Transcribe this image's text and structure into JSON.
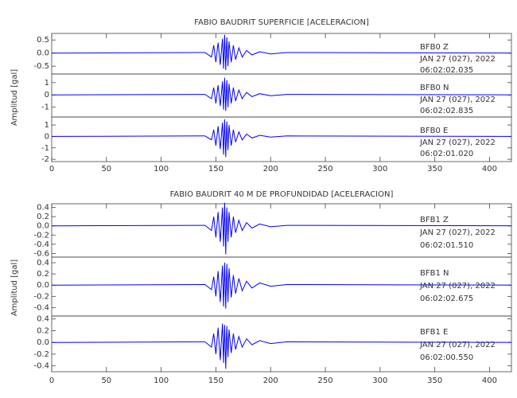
{
  "chart_data": [
    {
      "type": "line",
      "title": "FABIO BAUDRIT SUPERFICIE [ACELERACION]",
      "y_label": "Amplitud [gal]",
      "xlim": [
        0,
        420
      ],
      "xticks": [
        0,
        50,
        100,
        150,
        200,
        250,
        300,
        350,
        400
      ],
      "panels": [
        {
          "station": "BFB0   Z",
          "date": "JAN 27 (027), 2022",
          "time": "06:02:02.035",
          "color": "#0000ff",
          "ylim": [
            -0.8,
            0.75
          ],
          "yticks": [
            0.5,
            {
              "value": 0,
              "label": "0.0"
            },
            -0.5
          ],
          "x": [
            0,
            140,
            146,
            148,
            150,
            152,
            154,
            156,
            157,
            158,
            159,
            160,
            161,
            162,
            164,
            166,
            168,
            171,
            174,
            178,
            183,
            190,
            200,
            215,
            420
          ],
          "values": [
            0,
            0.02,
            -0.15,
            0.3,
            -0.35,
            0.4,
            -0.45,
            0.55,
            -0.6,
            0.7,
            -0.65,
            0.6,
            -0.5,
            0.45,
            -0.35,
            0.3,
            -0.25,
            0.2,
            -0.15,
            0.1,
            -0.07,
            0.05,
            -0.03,
            0.02,
            0
          ]
        },
        {
          "station": "BFB0   N",
          "date": "JAN 27 (027), 2022",
          "time": "06:02:02.835",
          "color": "#0000ff",
          "ylim": [
            -1.8,
            1.7
          ],
          "yticks": [
            1,
            0,
            -1
          ],
          "x": [
            0,
            140,
            146,
            148,
            150,
            152,
            154,
            156,
            157,
            158,
            159,
            160,
            161,
            162,
            164,
            166,
            168,
            171,
            174,
            178,
            183,
            190,
            200,
            215,
            420
          ],
          "values": [
            0,
            0.04,
            -0.3,
            0.6,
            -0.7,
            0.8,
            -0.9,
            1.1,
            -1.2,
            1.4,
            -1.3,
            1.2,
            -1.0,
            0.9,
            -0.7,
            0.6,
            -0.5,
            0.4,
            -0.3,
            0.2,
            -0.14,
            0.1,
            -0.06,
            0.04,
            0
          ]
        },
        {
          "station": "BFB0   E",
          "date": "JAN 27 (027), 2022",
          "time": "06:02:01.020",
          "color": "#0000ff",
          "ylim": [
            -2.2,
            1.7
          ],
          "yticks": [
            1,
            0,
            -1,
            -2
          ],
          "x": [
            0,
            140,
            146,
            148,
            150,
            152,
            154,
            156,
            157,
            158,
            159,
            160,
            161,
            162,
            164,
            166,
            168,
            171,
            174,
            178,
            183,
            190,
            200,
            215,
            420
          ],
          "values": [
            0,
            0.04,
            -0.3,
            0.6,
            -0.8,
            0.9,
            -1.1,
            1.2,
            -1.6,
            1.5,
            -1.8,
            1.3,
            -1.2,
            1.0,
            -0.8,
            0.6,
            -0.5,
            0.4,
            -0.3,
            0.2,
            -0.14,
            0.1,
            -0.06,
            0.04,
            0
          ]
        }
      ]
    },
    {
      "type": "line",
      "title": "FABIO BAUDRIT 40 M DE PROFUNDIDAD [ACELERACION]",
      "y_label": "Amplitud [gal]",
      "xlim": [
        0,
        420
      ],
      "xticks": [
        0,
        50,
        100,
        150,
        200,
        250,
        300,
        350,
        400
      ],
      "panels": [
        {
          "station": "BFB1   Z",
          "date": "JAN 27 (027), 2022",
          "time": "06:02:01.510",
          "color": "#0000ff",
          "ylim": [
            -0.68,
            0.48
          ],
          "yticks": [
            0.4,
            0.2,
            {
              "value": 0,
              "label": "0.0"
            },
            -0.2,
            -0.4,
            -0.6
          ],
          "x": [
            0,
            140,
            146,
            148,
            150,
            152,
            154,
            156,
            157,
            158,
            159,
            160,
            161,
            162,
            164,
            166,
            168,
            171,
            174,
            178,
            183,
            190,
            200,
            215,
            420
          ],
          "values": [
            0,
            0.01,
            -0.1,
            0.2,
            -0.25,
            0.3,
            -0.35,
            0.4,
            -0.45,
            0.5,
            -0.62,
            0.4,
            -0.35,
            0.3,
            -0.25,
            0.2,
            -0.15,
            0.12,
            -0.1,
            0.07,
            -0.05,
            0.04,
            -0.02,
            0.01,
            0
          ]
        },
        {
          "station": "BFB1   N",
          "date": "JAN 27 (027), 2022",
          "time": "06:02:02.675",
          "color": "#0000ff",
          "ylim": [
            -0.55,
            0.5
          ],
          "yticks": [
            0.4,
            0.2,
            {
              "value": 0,
              "label": "0.0"
            },
            -0.2,
            -0.4
          ],
          "x": [
            0,
            140,
            146,
            148,
            150,
            152,
            154,
            156,
            157,
            158,
            159,
            160,
            161,
            162,
            164,
            166,
            168,
            171,
            174,
            178,
            183,
            190,
            200,
            215,
            420
          ],
          "values": [
            0,
            0.01,
            -0.08,
            0.15,
            -0.2,
            0.25,
            -0.3,
            0.35,
            -0.38,
            0.4,
            -0.42,
            0.38,
            -0.3,
            0.3,
            -0.22,
            0.18,
            -0.15,
            0.12,
            -0.1,
            0.07,
            -0.05,
            0.04,
            -0.02,
            0.01,
            0
          ]
        },
        {
          "station": "BFB1   E",
          "date": "JAN 27 (027), 2022",
          "time": "06:02:00.550",
          "color": "#0000ff",
          "ylim": [
            -0.5,
            0.45
          ],
          "yticks": [
            0.4,
            0.2,
            {
              "value": 0,
              "label": "0.0"
            },
            -0.2,
            -0.4
          ],
          "x": [
            0,
            140,
            146,
            148,
            150,
            152,
            154,
            156,
            157,
            158,
            159,
            160,
            161,
            162,
            164,
            166,
            168,
            171,
            174,
            178,
            183,
            190,
            200,
            215,
            420
          ],
          "values": [
            0,
            0.01,
            -0.08,
            0.15,
            -0.2,
            0.25,
            -0.3,
            0.32,
            -0.35,
            0.3,
            -0.45,
            0.28,
            -0.25,
            0.22,
            -0.18,
            0.15,
            -0.12,
            0.1,
            -0.08,
            0.06,
            -0.04,
            0.03,
            -0.02,
            0.01,
            0
          ]
        }
      ]
    }
  ]
}
